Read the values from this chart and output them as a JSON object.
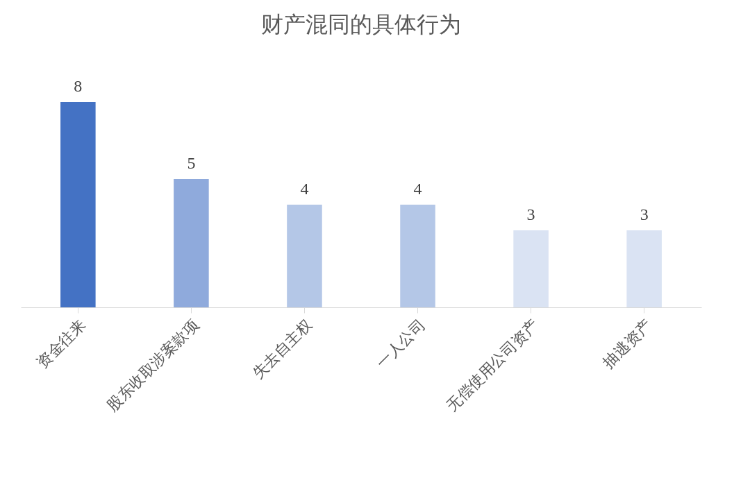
{
  "chart_data": {
    "type": "bar",
    "title": "财产混同的具体行为",
    "categories": [
      "资金往来",
      "股东收取涉案款项",
      "失去自主权",
      "一人公司",
      "无偿使用公司资产",
      "抽逃资产"
    ],
    "values": [
      8,
      5,
      4,
      4,
      3,
      3
    ],
    "colors": [
      "#4472c4",
      "#8faadc",
      "#b4c7e7",
      "#b4c7e7",
      "#dae3f3",
      "#dae3f3"
    ],
    "data_labels": true,
    "grid": false,
    "tick_labels": "x"
  }
}
